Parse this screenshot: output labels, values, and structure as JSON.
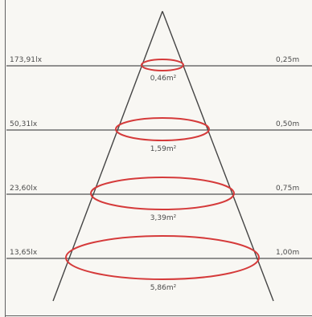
{
  "diagram": {
    "colors": {
      "background": "#f8f7f3",
      "lines": "#444444",
      "rings": "#d53a3a",
      "text": "#4a4a4a"
    },
    "levels": [
      {
        "illuminance": "173,91lx",
        "distance": "0,25m",
        "area": "0,46m²"
      },
      {
        "illuminance": "50,31lx",
        "distance": "0,50m",
        "area": "1,59m²"
      },
      {
        "illuminance": "23,60lx",
        "distance": "0,75m",
        "area": "3,39m²"
      },
      {
        "illuminance": "13,65lx",
        "distance": "1,00m",
        "area": "5,86m²"
      }
    ]
  }
}
